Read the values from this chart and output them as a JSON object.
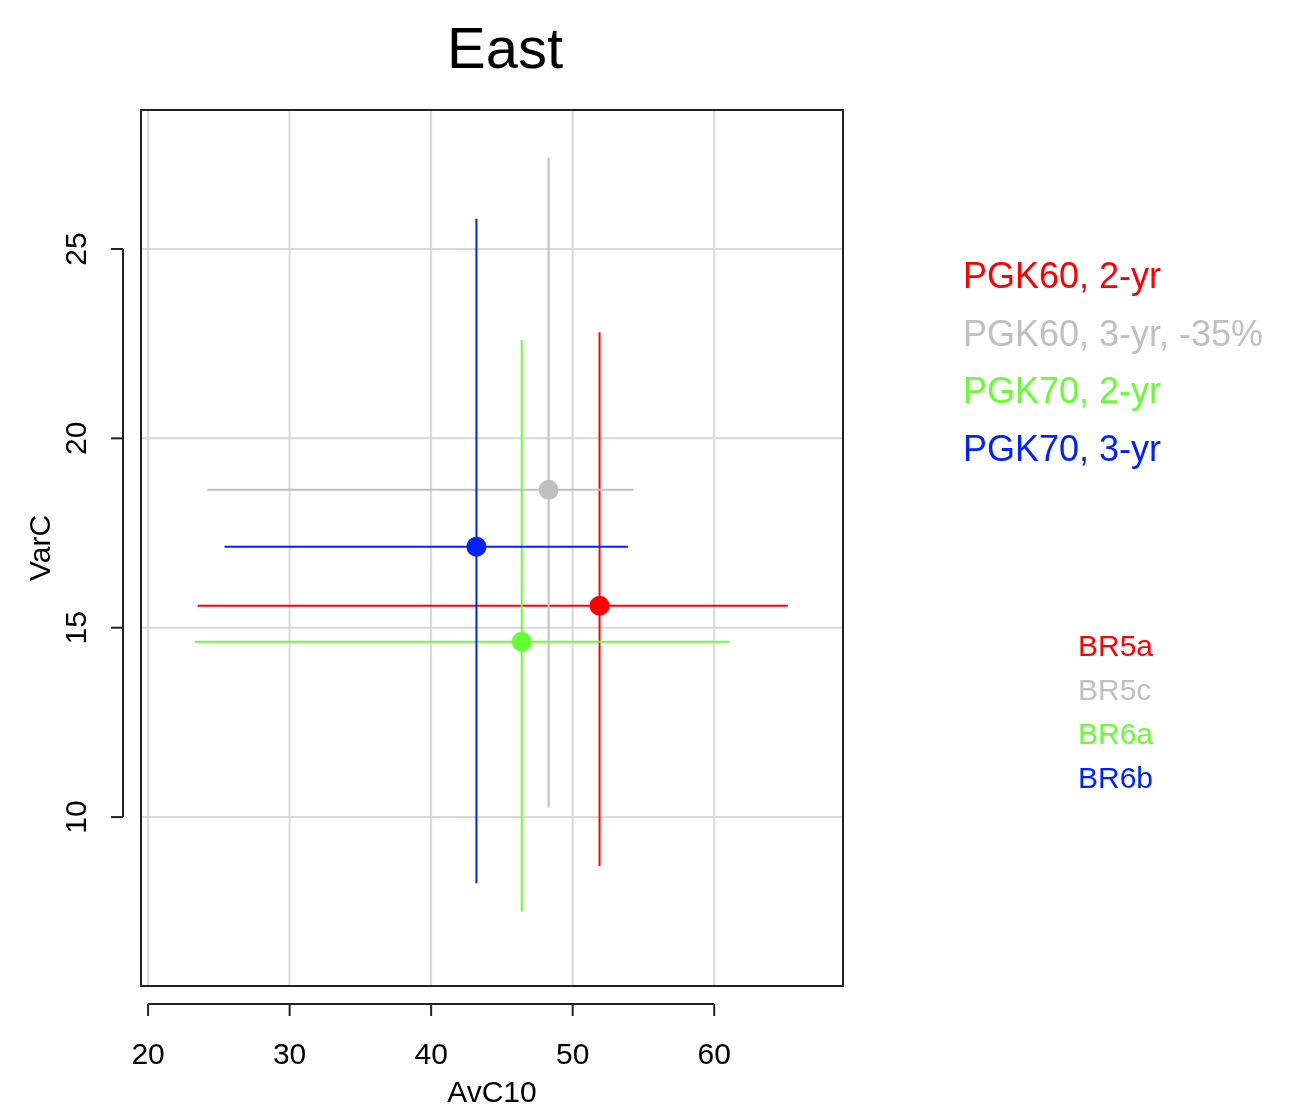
{
  "chart_data": {
    "type": "scatter",
    "title": "East",
    "xlabel": "AvC10",
    "ylabel": "VarC",
    "xlim": [
      19.5,
      69.1
    ],
    "ylim": [
      5.54,
      28.67
    ],
    "xticks": [
      20,
      30,
      40,
      50,
      60
    ],
    "yticks": [
      10,
      15,
      20,
      25
    ],
    "grid": true,
    "marker": "circle",
    "legend": "right",
    "series": [
      {
        "name": "BR5a",
        "color": "#ff0000",
        "x": [
          51.9
        ],
        "values": [
          15.58
        ],
        "xerrors": [
          [
            23.5,
            65.2
          ]
        ],
        "errors": [
          [
            8.7,
            22.8
          ]
        ]
      },
      {
        "name": "BR5c",
        "color": "#c0c0c0",
        "x": [
          48.3
        ],
        "values": [
          18.64
        ],
        "xerrors": [
          [
            24.2,
            54.3
          ]
        ],
        "errors": [
          [
            10.25,
            27.4
          ]
        ]
      },
      {
        "name": "BR6a",
        "color": "#66ff33",
        "x": [
          46.4
        ],
        "values": [
          14.63
        ],
        "xerrors": [
          [
            23.3,
            61.1
          ]
        ],
        "errors": [
          [
            7.5,
            22.6
          ]
        ]
      },
      {
        "name": "BR6b",
        "color": "#0022ff",
        "x": [
          43.2
        ],
        "values": [
          17.14
        ],
        "xerrors": [
          [
            25.4,
            53.9
          ]
        ],
        "errors": [
          [
            8.25,
            25.8
          ]
        ]
      }
    ],
    "annotations": [
      "PGK60, 2-yr",
      "PGK60, 3-yr, -35%",
      "PGK70, 2-yr",
      "PGK70, 3-yr"
    ]
  }
}
